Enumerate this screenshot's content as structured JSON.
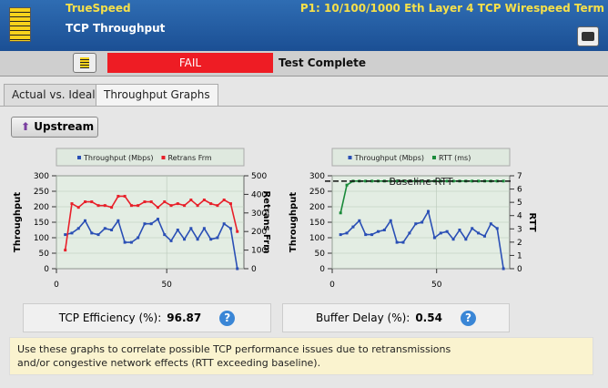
{
  "header": {
    "app": "TrueSpeed",
    "port": "P1: 10/100/1000 Eth Layer 4 TCP Wirespeed Term",
    "title": "TCP Throughput"
  },
  "status": {
    "result": "FAIL",
    "message": "Test Complete"
  },
  "tabs": [
    "Actual vs. Ideal",
    "Throughput Graphs"
  ],
  "direction_button": "Upstream",
  "chart_data": [
    {
      "type": "line",
      "ylabel": "Throughput",
      "y2label": "Retrans Frm",
      "x": [
        4,
        7,
        10,
        13,
        16,
        19,
        22,
        25,
        28,
        31,
        34,
        37,
        40,
        43,
        46,
        49,
        52,
        55,
        58,
        61,
        64,
        67,
        70,
        73,
        76,
        79,
        82
      ],
      "series": [
        {
          "name": "Throughput (Mbps)",
          "color": "#2a4fb5",
          "values": [
            110,
            115,
            130,
            155,
            115,
            110,
            130,
            125,
            155,
            85,
            85,
            100,
            145,
            145,
            160,
            110,
            90,
            125,
            95,
            130,
            95,
            130,
            95,
            100,
            145,
            130,
            0
          ]
        },
        {
          "name": "Retrans Frm",
          "color": "#e8202a",
          "axis": "y2",
          "values": [
            100,
            350,
            330,
            360,
            360,
            340,
            340,
            330,
            390,
            390,
            340,
            340,
            360,
            360,
            330,
            360,
            340,
            350,
            340,
            370,
            340,
            370,
            350,
            340,
            370,
            350,
            200
          ]
        }
      ],
      "xlim": [
        0,
        85
      ],
      "xticks": [
        0,
        50
      ],
      "ylim": [
        0,
        300
      ],
      "yticks": [
        0,
        50,
        100,
        150,
        200,
        250,
        300
      ],
      "y2lim": [
        0,
        500
      ],
      "y2ticks": [
        0,
        100,
        200,
        300,
        400,
        500
      ],
      "grid": true
    },
    {
      "type": "line",
      "ylabel": "Throughput",
      "y2label": "RTT",
      "annotation": "Baseline RTT",
      "baseline": 6.6,
      "x": [
        4,
        7,
        10,
        13,
        16,
        19,
        22,
        25,
        28,
        31,
        34,
        37,
        40,
        43,
        46,
        49,
        52,
        55,
        58,
        61,
        64,
        67,
        70,
        73,
        76,
        79,
        82
      ],
      "series": [
        {
          "name": "Throughput (Mbps)",
          "color": "#2a4fb5",
          "values": [
            110,
            115,
            135,
            155,
            110,
            110,
            120,
            125,
            155,
            85,
            85,
            115,
            145,
            150,
            185,
            100,
            115,
            120,
            95,
            125,
            95,
            130,
            115,
            105,
            145,
            130,
            0
          ]
        },
        {
          "name": "RTT (ms)",
          "color": "#1a8a3a",
          "axis": "y2",
          "values": [
            4.2,
            6.3,
            6.6,
            6.6,
            6.6,
            6.6,
            6.6,
            6.6,
            6.6,
            6.6,
            6.6,
            6.6,
            6.6,
            6.6,
            6.6,
            6.6,
            6.6,
            6.6,
            6.6,
            6.6,
            6.6,
            6.6,
            6.6,
            6.6,
            6.6,
            6.6,
            6.6
          ]
        }
      ],
      "xlim": [
        0,
        85
      ],
      "xticks": [
        0,
        50
      ],
      "ylim": [
        0,
        300
      ],
      "yticks": [
        0,
        50,
        100,
        150,
        200,
        250,
        300
      ],
      "y2lim": [
        0,
        7
      ],
      "y2ticks": [
        0,
        1,
        2,
        3,
        4,
        5,
        6,
        7
      ],
      "grid": true
    }
  ],
  "metrics": [
    {
      "label": "TCP Efficiency (%):",
      "value": "96.87"
    },
    {
      "label": "Buffer Delay (%):",
      "value": "0.54"
    }
  ],
  "note": [
    "Use these graphs to correlate possible TCP performance issues due to retransmissions",
    "and/or congestive network effects (RTT exceeding baseline)."
  ]
}
